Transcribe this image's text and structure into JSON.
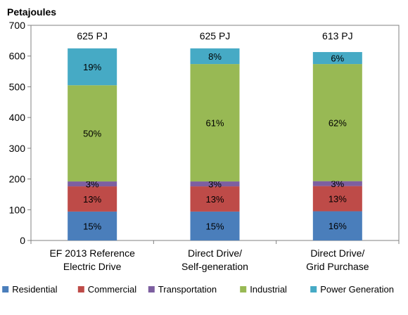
{
  "chart_data": {
    "type": "bar",
    "stacked": true,
    "ylabel": "Petajoules",
    "ylim": [
      0,
      700
    ],
    "yticks": [
      0,
      100,
      200,
      300,
      400,
      500,
      600,
      700
    ],
    "categories": [
      [
        "EF 2013 Reference",
        "Electric Drive"
      ],
      [
        "Direct Drive/",
        "Self-generation"
      ],
      [
        "Direct Drive/",
        "Grid Purchase"
      ]
    ],
    "totals": [
      "625 PJ",
      "625 PJ",
      "613 PJ"
    ],
    "series": [
      {
        "name": "Residential",
        "color": "#4a7ebb",
        "values": [
          94,
          94,
          95
        ],
        "labels": [
          "15%",
          "15%",
          "16%"
        ]
      },
      {
        "name": "Commercial",
        "color": "#be4b48",
        "values": [
          82,
          82,
          82
        ],
        "labels": [
          "13%",
          "13%",
          "13%"
        ]
      },
      {
        "name": "Transportation",
        "color": "#7d5fa0",
        "values": [
          16,
          16,
          16
        ],
        "labels": [
          "3%",
          "3%",
          "3%"
        ]
      },
      {
        "name": "Industrial",
        "color": "#98b954",
        "values": [
          313,
          382,
          381
        ],
        "labels": [
          "50%",
          "61%",
          "62%"
        ]
      },
      {
        "name": "Power Generation",
        "color": "#46aac5",
        "values": [
          120,
          51,
          39
        ],
        "labels": [
          "19%",
          "8%",
          "6%"
        ]
      }
    ],
    "legend_position": "bottom",
    "grid": false
  }
}
